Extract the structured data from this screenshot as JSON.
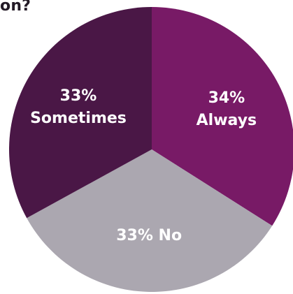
{
  "title": "on?",
  "chart_data": {
    "type": "pie",
    "title": "on?",
    "start_angle_deg": 0,
    "direction": "clockwise",
    "slices": [
      {
        "name": "Always",
        "value": 34,
        "label_lines": [
          "34%",
          "Always"
        ],
        "color": "#781a66"
      },
      {
        "name": "No",
        "value": 33,
        "label_lines": [
          "33% No"
        ],
        "color": "#aba7b0"
      },
      {
        "name": "Sometimes",
        "value": 33,
        "label_lines": [
          "33%",
          "Sometimes"
        ],
        "color": "#4a1746"
      }
    ],
    "legend": "none",
    "grid": false
  }
}
